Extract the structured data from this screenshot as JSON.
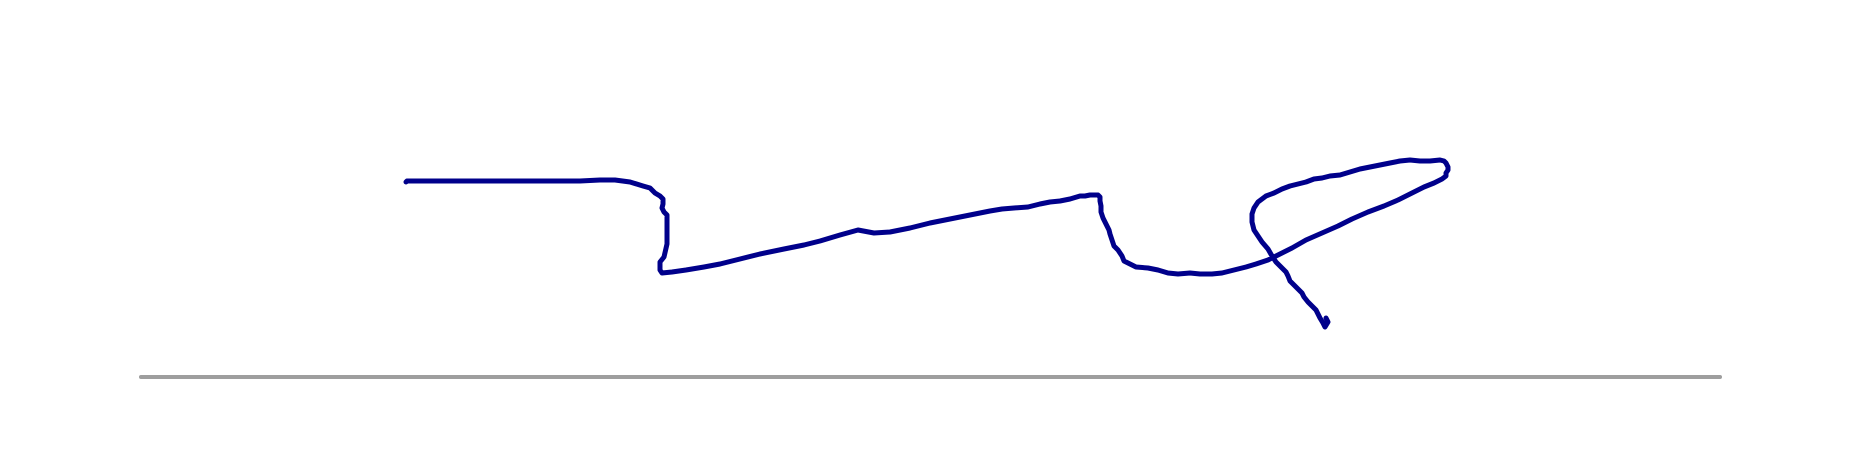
{
  "colors": {
    "background": "#ffffff",
    "ink": "#00008b",
    "baseline": "#9e9e9e"
  }
}
